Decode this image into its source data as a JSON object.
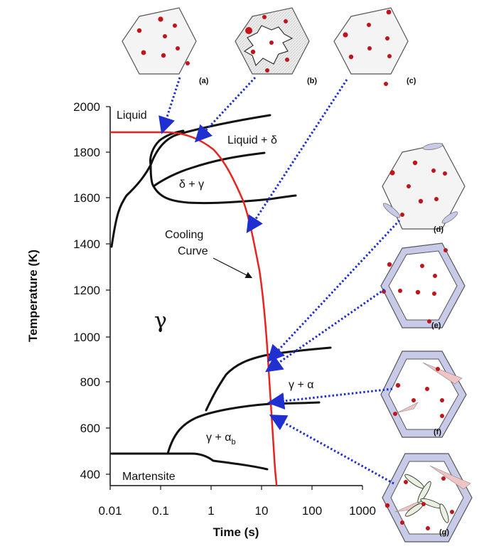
{
  "axes": {
    "ylabel": "Temperature (K)",
    "xlabel": "Time (s)",
    "y_ticks": [
      "2000",
      "1800",
      "1600",
      "1400",
      "1200",
      "1000",
      "800",
      "600",
      "400"
    ],
    "x_ticks": [
      "0.01",
      "0.1",
      "1",
      "10",
      "100",
      "1000"
    ],
    "x_scale": "log",
    "x_range": [
      0.01,
      1000
    ],
    "y_range": [
      350,
      2000
    ]
  },
  "regions": {
    "liquid": "Liquid",
    "liquid_delta": "Liquid + δ",
    "delta_gamma": "δ + γ",
    "gamma": "γ",
    "gamma_alpha": "γ + α",
    "gamma_alpha_b_main": "γ + α",
    "gamma_alpha_b_sub": "b",
    "martensite": "Martensite"
  },
  "annotation": {
    "cooling_line1": "Cooling",
    "cooling_line2": "Curve"
  },
  "panels": [
    "(a)",
    "(b)",
    "(c)",
    "(d)",
    "(e)",
    "(f)",
    "(g)"
  ],
  "colors": {
    "cooling_curve": "#e8231f",
    "phase_lines": "#111111",
    "arrow": "#1f2fd1",
    "particle": "#c0141a",
    "grain_border": "#c8cbe8",
    "grain_fill_b": "#e3e3e3",
    "needle": "#e8a0a0"
  }
}
